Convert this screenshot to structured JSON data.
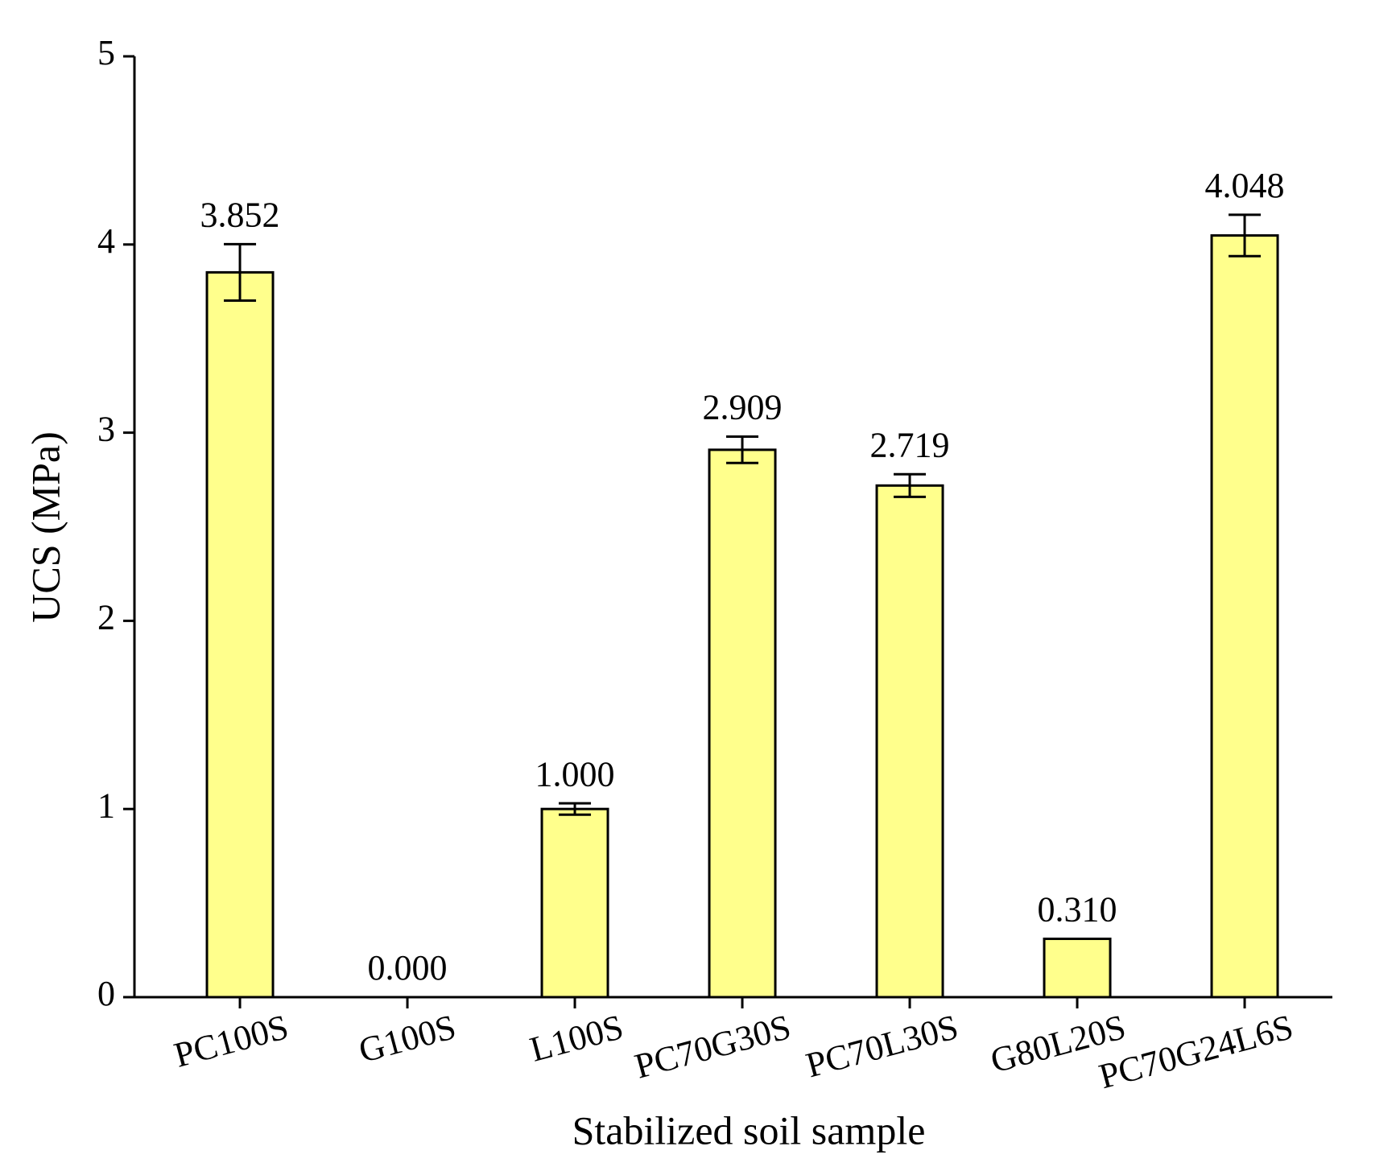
{
  "chart_data": {
    "type": "bar",
    "x_label": "Stabilized soil sample",
    "y_label": "UCS (MPa)",
    "categories": [
      "PC100S",
      "G100S",
      "L100S",
      "PC70G30S",
      "PC70L30S",
      "G80L20S",
      "PC70G24L6S"
    ],
    "values": [
      3.852,
      0,
      1.0,
      2.909,
      2.719,
      0.31,
      4.048
    ],
    "value_labels": [
      "3.852",
      "0.000",
      "1.000",
      "2.909",
      "2.719",
      "0.310",
      "4.048"
    ],
    "errors": [
      0.15,
      0,
      0.03,
      0.07,
      0.06,
      0,
      0.11
    ],
    "color": "#ffff8c",
    "ylim": [
      0,
      5
    ],
    "yticks": [
      0,
      1,
      2,
      3,
      4,
      5
    ],
    "grid": false
  }
}
